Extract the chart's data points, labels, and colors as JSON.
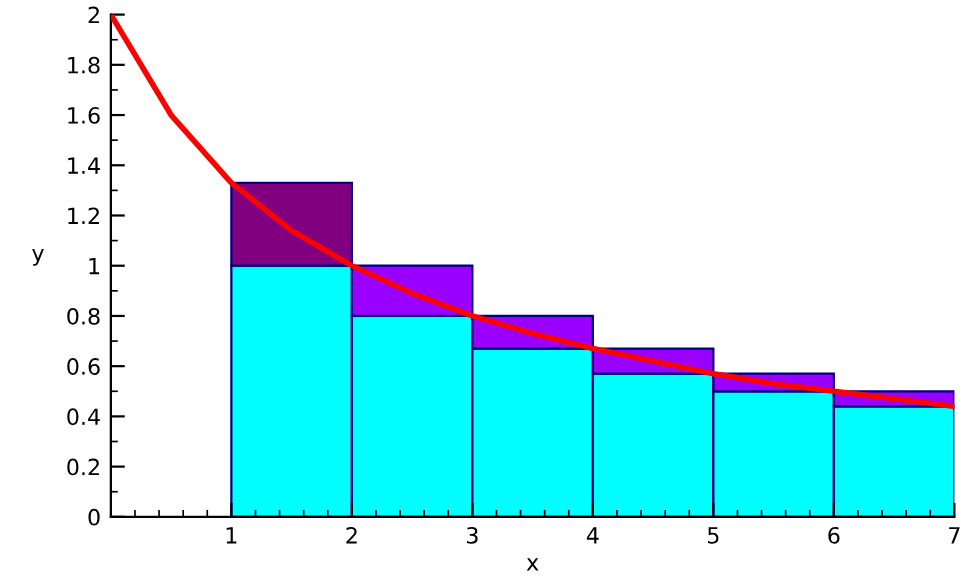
{
  "chart_data": {
    "type": "bar",
    "stacked": true,
    "xlabel": "x",
    "ylabel": "y",
    "xlim": [
      0,
      7
    ],
    "ylim": [
      0,
      2
    ],
    "xticks": [
      1,
      2,
      3,
      4,
      5,
      6,
      7
    ],
    "yticks": [
      0,
      0.2,
      0.4,
      0.6,
      0.8,
      1,
      1.2,
      1.4,
      1.6,
      1.8,
      2
    ],
    "grid": false,
    "series": [
      {
        "x": [
          1.5,
          2.5,
          3.5,
          4.5,
          5.5,
          6.5
        ],
        "color": "#00ffff",
        "values": [
          1.0,
          0.8,
          0.67,
          0.57,
          0.5,
          0.44
        ]
      },
      {
        "x": [
          1.5,
          2.5,
          3.5,
          4.5,
          5.5,
          6.5
        ],
        "colors": [
          "#800080",
          "#9900ff",
          "#9900ff",
          "#9900ff",
          "#9900ff",
          "#9900ff"
        ],
        "values": [
          0.33,
          0.2,
          0.13,
          0.1,
          0.07,
          0.06
        ]
      },
      {
        "type": "line",
        "color": "#ff0000",
        "x": [
          0,
          0.5,
          1,
          1.5,
          2,
          2.5,
          3,
          3.5,
          4,
          4.5,
          5,
          5.5,
          6,
          6.5,
          7
        ],
        "values": [
          2,
          1.6,
          1.33,
          1.14,
          1,
          0.89,
          0.8,
          0.73,
          0.67,
          0.62,
          0.57,
          0.53,
          0.5,
          0.47,
          0.44
        ]
      }
    ]
  }
}
